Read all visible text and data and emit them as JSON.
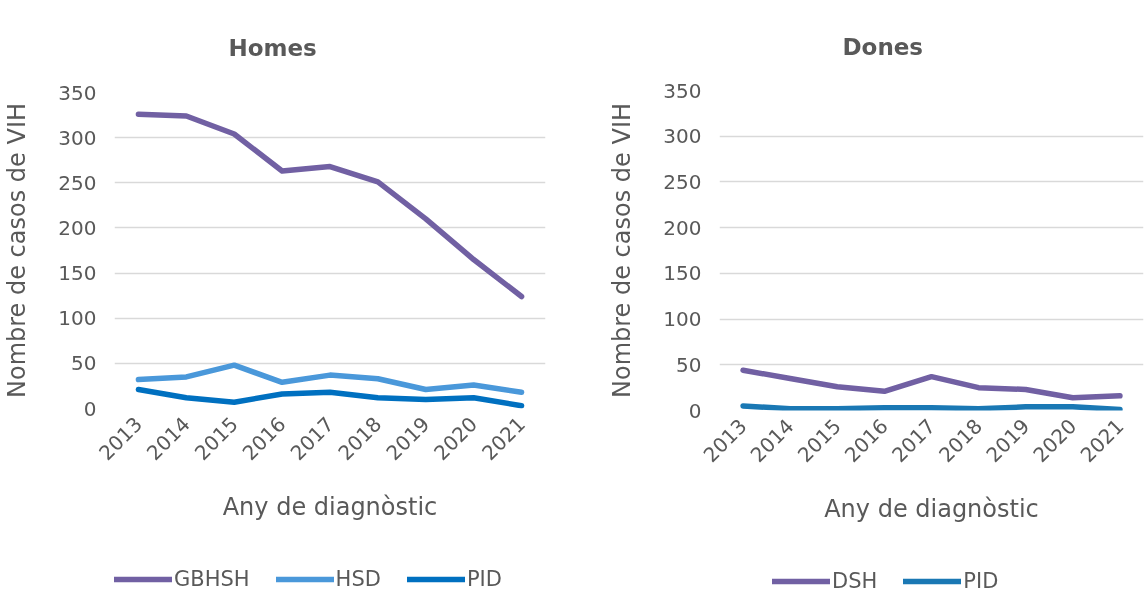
{
  "chart_data": [
    {
      "type": "line",
      "title": "Homes",
      "xlabel": "Any de diagnòstic",
      "ylabel": "Nombre de casos de VIH",
      "categories": [
        "2013",
        "2014",
        "2015",
        "2016",
        "2017",
        "2018",
        "2019",
        "2020",
        "2021"
      ],
      "series": [
        {
          "name": "GBHSH",
          "color": "#7160a3",
          "values": [
            326,
            324,
            304,
            263,
            268,
            251,
            210,
            165,
            124
          ]
        },
        {
          "name": "HSD",
          "color": "#4a98da",
          "values": [
            32,
            35,
            48,
            29,
            37,
            33,
            21,
            26,
            18
          ]
        },
        {
          "name": "PID",
          "color": "#0070c0",
          "values": [
            21,
            12,
            7,
            16,
            18,
            12,
            10,
            12,
            3
          ]
        }
      ],
      "ylim": [
        0,
        350
      ],
      "yticks": [
        0,
        50,
        100,
        150,
        200,
        250,
        300,
        350
      ],
      "grid": "y",
      "legend": "bottom"
    },
    {
      "type": "line",
      "title": "Dones",
      "xlabel": "Any de diagnòstic",
      "ylabel": "Nombre de casos de VIH",
      "categories": [
        "2013",
        "2014",
        "2015",
        "2016",
        "2017",
        "2018",
        "2019",
        "2020",
        "2021"
      ],
      "series": [
        {
          "name": "DSH",
          "color": "#7160a3",
          "values": [
            44,
            35,
            26,
            21,
            37,
            25,
            23,
            14,
            16
          ]
        },
        {
          "name": "PID",
          "color": "#1a78b4",
          "values": [
            5,
            2,
            2,
            3,
            3,
            2,
            4,
            4,
            1
          ]
        }
      ],
      "ylim": [
        0,
        350
      ],
      "yticks": [
        0,
        50,
        100,
        150,
        200,
        250,
        300,
        350
      ],
      "grid": "y",
      "legend": "bottom"
    }
  ]
}
